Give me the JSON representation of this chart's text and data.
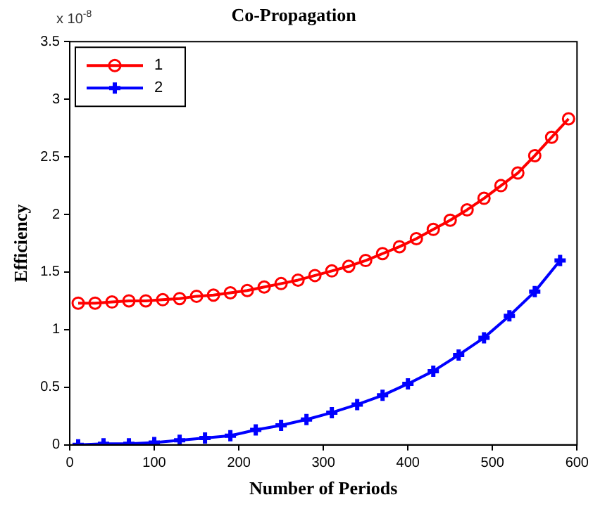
{
  "chart_data": {
    "type": "line",
    "title": "Co-Propagation",
    "xlabel": "Number of Periods",
    "ylabel": "Efficiency",
    "annotations": [
      "x 10$^{-8}$"
    ],
    "series": [
      {
        "name": "1",
        "color": "#ff0000",
        "marker": "circle",
        "x": [
          10,
          30,
          50,
          70,
          90,
          110,
          130,
          150,
          170,
          190,
          210,
          230,
          250,
          270,
          290,
          310,
          330,
          350,
          370,
          390,
          410,
          430,
          450,
          470,
          490,
          510,
          530,
          550,
          570,
          590
        ],
        "values": [
          1.23,
          1.23,
          1.24,
          1.25,
          1.25,
          1.26,
          1.27,
          1.29,
          1.3,
          1.32,
          1.34,
          1.37,
          1.4,
          1.43,
          1.47,
          1.51,
          1.55,
          1.6,
          1.66,
          1.72,
          1.79,
          1.87,
          1.95,
          2.04,
          2.14,
          2.25,
          2.36,
          2.51,
          2.67,
          2.83
        ]
      },
      {
        "name": "2",
        "color": "#0000ff",
        "marker": "cross",
        "x": [
          10,
          40,
          70,
          100,
          130,
          160,
          190,
          220,
          250,
          280,
          310,
          340,
          370,
          400,
          430,
          460,
          490,
          520,
          550,
          580
        ],
        "values": [
          0,
          0.01,
          0.01,
          0.02,
          0.04,
          0.06,
          0.08,
          0.13,
          0.17,
          0.22,
          0.28,
          0.35,
          0.43,
          0.53,
          0.64,
          0.78,
          0.93,
          1.12,
          1.33,
          1.6
        ]
      }
    ],
    "xlim": [
      0,
      600
    ],
    "xticks": [
      0,
      100,
      200,
      300,
      400,
      500,
      600
    ],
    "ylim": [
      0,
      3.5
    ],
    "yticks": [
      0,
      0.5,
      1,
      1.5,
      2,
      2.5,
      3,
      3.5
    ],
    "grid": false,
    "legend": "top left",
    "line_style": "solid"
  }
}
